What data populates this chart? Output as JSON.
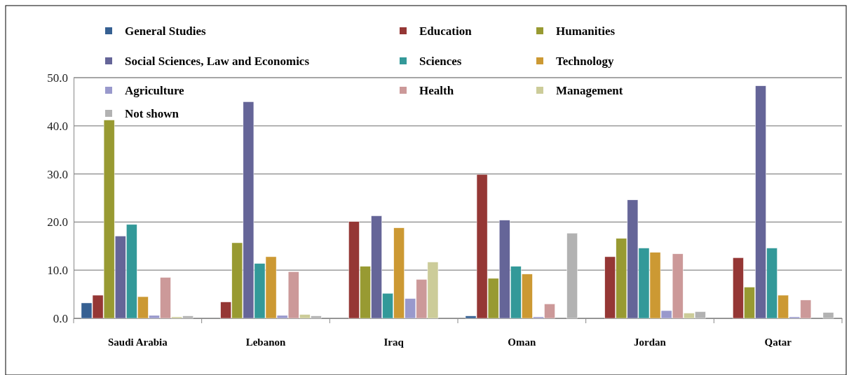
{
  "chart_data": {
    "type": "bar",
    "categories": [
      "Saudi Arabia",
      "Lebanon",
      "Iraq",
      "Oman",
      "Jordan",
      "Qatar"
    ],
    "series": [
      {
        "name": "General Studies",
        "color": "#366092",
        "values": [
          3.2,
          0,
          0,
          0.5,
          0,
          0
        ]
      },
      {
        "name": "Education",
        "color": "#953735",
        "values": [
          4.8,
          3.4,
          20.1,
          29.9,
          12.8,
          12.6
        ]
      },
      {
        "name": "Humanities",
        "color": "#989a32",
        "values": [
          41.2,
          15.7,
          10.8,
          8.3,
          16.6,
          6.5
        ]
      },
      {
        "name": "Social Sciences, Law and Economics",
        "color": "#656598",
        "values": [
          17.1,
          45.0,
          21.3,
          20.4,
          24.6,
          48.3
        ]
      },
      {
        "name": "Sciences",
        "color": "#339999",
        "values": [
          19.5,
          11.4,
          5.2,
          10.8,
          14.6,
          14.6
        ]
      },
      {
        "name": "Technology",
        "color": "#cc9933",
        "values": [
          4.5,
          12.8,
          18.8,
          9.2,
          13.7,
          4.8
        ]
      },
      {
        "name": "Agriculture",
        "color": "#9999cc",
        "values": [
          0.6,
          0.6,
          4.1,
          0.3,
          1.6,
          0.3
        ]
      },
      {
        "name": "Health",
        "color": "#cc9999",
        "values": [
          8.5,
          9.7,
          8.1,
          3.0,
          13.4,
          3.8
        ]
      },
      {
        "name": "Management",
        "color": "#cccc99",
        "values": [
          0.3,
          0.8,
          11.7,
          0,
          1.1,
          0
        ]
      },
      {
        "name": "Not shown",
        "color": "#b2b2b2",
        "values": [
          0.5,
          0.5,
          0,
          17.7,
          1.4,
          1.2
        ]
      }
    ],
    "ylim": [
      0,
      50
    ],
    "yticks": [
      {
        "value": 0,
        "label": "0.0"
      },
      {
        "value": 10,
        "label": "10.0"
      },
      {
        "value": 20,
        "label": "20.0"
      },
      {
        "value": 30,
        "label": "30.0"
      },
      {
        "value": 40,
        "label": "40.0"
      },
      {
        "value": 50,
        "label": "50.0"
      }
    ],
    "grid": "y",
    "legend": "top"
  }
}
